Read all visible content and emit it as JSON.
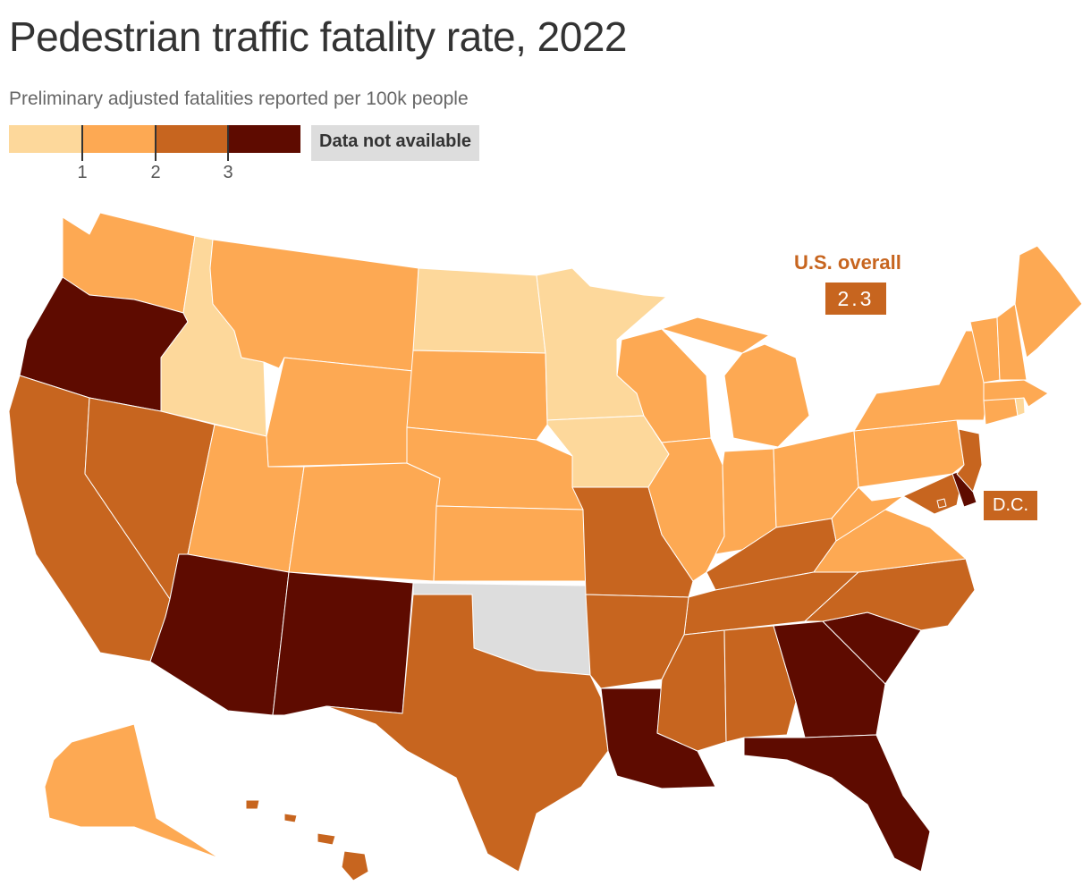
{
  "title": "Pedestrian traffic fatality rate, 2022",
  "subtitle": "Preliminary adjusted fatalities reported per 100k people",
  "legend": {
    "bins": [
      {
        "color": "#fdd89b"
      },
      {
        "color": "#fda953"
      },
      {
        "color": "#c7651f"
      },
      {
        "color": "#5e0b00"
      }
    ],
    "ticks": [
      "1",
      "2",
      "3"
    ],
    "na_label": "Data not available",
    "na_color": "#dddddd"
  },
  "callout": {
    "title": "U.S. overall",
    "value": "2.3"
  },
  "dc_label": "D.C.",
  "chart_data": {
    "type": "choropleth",
    "bins": [
      {
        "range": "< 1",
        "color": "#fdd89b",
        "states": [
          "Idaho",
          "North Dakota",
          "Minnesota",
          "Iowa",
          "Rhode Island"
        ]
      },
      {
        "range": "1–2",
        "color": "#fda953",
        "states": [
          "Washington",
          "Montana",
          "Wyoming",
          "Utah",
          "Colorado",
          "South Dakota",
          "Nebraska",
          "Kansas",
          "Wisconsin",
          "Illinois",
          "Michigan",
          "Indiana",
          "Ohio",
          "West Virginia",
          "Virginia",
          "Pennsylvania",
          "New York",
          "Vermont",
          "New Hampshire",
          "Maine",
          "Massachusetts",
          "Connecticut",
          "Alaska"
        ]
      },
      {
        "range": "2–3",
        "color": "#c7651f",
        "states": [
          "California",
          "Nevada",
          "Texas",
          "Missouri",
          "Arkansas",
          "Mississippi",
          "Alabama",
          "Tennessee",
          "Kentucky",
          "North Carolina",
          "Maryland",
          "New Jersey",
          "Hawaii",
          "District of Columbia"
        ]
      },
      {
        "range": "> 3",
        "color": "#5e0b00",
        "states": [
          "Oregon",
          "Arizona",
          "New Mexico",
          "Louisiana",
          "Georgia",
          "South Carolina",
          "Florida",
          "Delaware"
        ]
      }
    ],
    "not_available": [
      "Oklahoma"
    ],
    "us_overall": 2.3
  }
}
